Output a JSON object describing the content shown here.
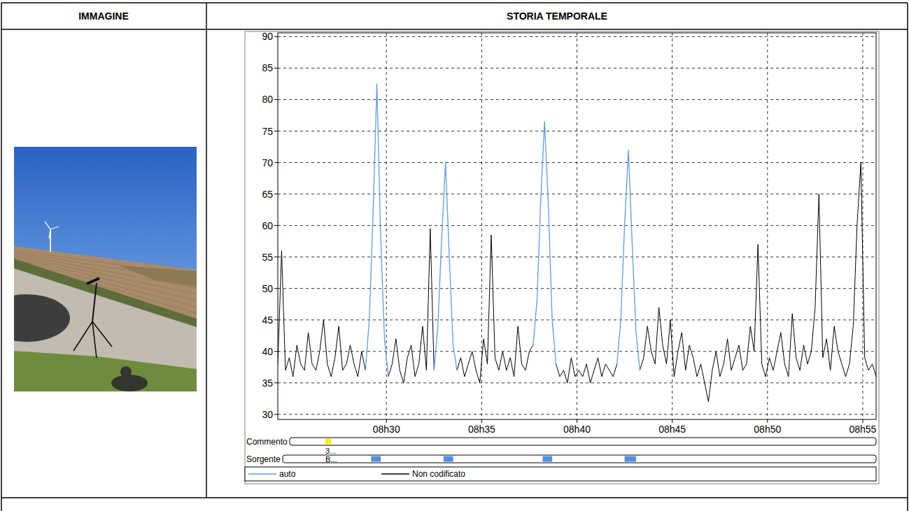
{
  "table": {
    "headers": [
      "IMMAGINE",
      "STORIA TEMPORALE"
    ]
  },
  "chart_data": {
    "type": "line",
    "x": [
      504.3,
      504.5,
      504.7,
      504.9,
      505.1,
      505.3,
      505.5,
      505.7,
      505.9,
      506.1,
      506.3,
      506.5,
      506.7,
      506.9,
      507.1,
      507.3,
      507.5,
      507.7,
      507.9,
      508.1,
      508.3,
      508.5,
      508.7,
      508.9,
      509.1,
      509.3,
      509.5,
      509.7,
      509.9,
      510.1,
      510.3,
      510.5,
      510.7,
      510.9,
      511.1,
      511.3,
      511.5,
      511.7,
      511.9,
      512.1,
      512.3,
      512.5,
      512.7,
      512.9,
      513.1,
      513.3,
      513.5,
      513.7,
      513.9,
      514.1,
      514.3,
      514.5,
      514.7,
      514.9,
      515.1,
      515.3,
      515.5,
      515.7,
      515.9,
      516.1,
      516.3,
      516.5,
      516.7,
      516.9,
      517.1,
      517.3,
      517.5,
      517.7,
      517.9,
      518.1,
      518.3,
      518.5,
      518.7,
      518.9,
      519.1,
      519.3,
      519.5,
      519.7,
      519.9,
      520.1,
      520.3,
      520.5,
      520.7,
      520.9,
      521.1,
      521.3,
      521.5,
      521.7,
      521.9,
      522.1,
      522.3,
      522.5,
      522.7,
      522.9,
      523.1,
      523.3,
      523.5,
      523.7,
      523.9,
      524.1,
      524.3,
      524.5,
      524.7,
      524.9,
      525.1,
      525.3,
      525.5,
      525.7,
      525.9,
      526.1,
      526.3,
      526.5,
      526.7,
      526.9,
      527.1,
      527.3,
      527.5,
      527.7,
      527.9,
      528.1,
      528.3,
      528.5,
      528.7,
      528.9,
      529.1,
      529.3,
      529.5,
      529.7,
      529.9,
      530.1,
      530.3,
      530.5,
      530.7,
      530.9,
      531.1,
      531.3,
      531.5,
      531.7,
      531.9,
      532.1,
      532.3,
      532.5,
      532.7,
      532.9,
      533.1,
      533.3,
      533.5,
      533.7,
      533.9,
      534.1,
      534.3,
      534.5,
      534.7,
      534.9,
      535.1,
      535.3,
      535.5,
      535.7
    ],
    "series": [
      {
        "name": "auto",
        "color": "#5c9ce6",
        "values": [
          null,
          null,
          null,
          null,
          null,
          null,
          null,
          null,
          null,
          null,
          null,
          null,
          null,
          null,
          null,
          null,
          null,
          null,
          null,
          null,
          null,
          null,
          null,
          37,
          45,
          62,
          82.5,
          58,
          42,
          36,
          null,
          null,
          null,
          null,
          null,
          null,
          null,
          null,
          null,
          null,
          null,
          37,
          44,
          58,
          70,
          55,
          41,
          37,
          null,
          null,
          null,
          null,
          null,
          null,
          null,
          null,
          null,
          null,
          null,
          null,
          null,
          null,
          null,
          null,
          null,
          null,
          null,
          41,
          48,
          64,
          76.5,
          63,
          45,
          38,
          null,
          null,
          null,
          null,
          null,
          null,
          null,
          null,
          null,
          null,
          null,
          null,
          null,
          null,
          null,
          38,
          45,
          60,
          72,
          57,
          43,
          37,
          null,
          null,
          null,
          null,
          null,
          null,
          null,
          null,
          null,
          null,
          null,
          null,
          null,
          null,
          null,
          null,
          null,
          null,
          null,
          null,
          null,
          null,
          null,
          null,
          null,
          null,
          null,
          null,
          null,
          null,
          null,
          null,
          null,
          null,
          null,
          null,
          null,
          null,
          null,
          null,
          null,
          null,
          null,
          null,
          null,
          null,
          null,
          null,
          null,
          null,
          null,
          null,
          null,
          null,
          null,
          null,
          null,
          null,
          null,
          null,
          null,
          null
        ]
      },
      {
        "name": "Non codificato",
        "color": "#000000",
        "values": [
          38,
          56,
          37,
          39,
          36,
          41,
          38,
          37,
          43,
          38,
          37,
          40,
          45,
          38,
          36,
          39,
          44,
          37,
          38,
          41,
          38,
          36,
          40,
          37,
          null,
          null,
          null,
          null,
          null,
          36,
          38,
          42,
          37,
          35,
          39,
          41,
          36,
          38,
          44,
          37,
          59.5,
          37,
          null,
          null,
          null,
          null,
          null,
          37,
          39,
          36,
          38,
          40,
          37,
          35,
          42,
          38,
          58.5,
          39,
          37,
          40,
          37,
          39,
          36,
          44,
          38,
          37,
          40,
          41,
          null,
          null,
          null,
          null,
          null,
          38,
          36,
          37,
          35,
          39,
          36,
          37,
          36,
          38,
          35,
          37,
          39,
          36,
          38,
          37,
          36,
          38,
          null,
          null,
          null,
          null,
          null,
          37,
          39,
          44,
          40,
          38,
          47,
          41,
          38,
          45,
          36,
          40,
          43,
          37,
          41,
          39,
          36,
          38,
          35,
          32,
          37,
          40,
          36,
          38,
          42,
          37,
          39,
          41,
          37,
          38,
          44,
          40,
          57,
          38,
          36,
          39,
          37,
          40,
          43,
          38,
          36,
          46,
          39,
          37,
          41,
          38,
          40,
          47,
          65,
          39,
          42,
          37,
          44,
          40,
          38,
          36,
          38,
          44,
          60,
          70,
          39,
          37,
          38,
          36
        ]
      }
    ],
    "xlim": [
      504.3,
      535.7
    ],
    "ylim": [
      29.2,
      90.6
    ],
    "xticks": [
      {
        "value": 510,
        "label": "08h30"
      },
      {
        "value": 515,
        "label": "08h35"
      },
      {
        "value": 520,
        "label": "08h40"
      },
      {
        "value": 525,
        "label": "08h45"
      },
      {
        "value": 530,
        "label": "08h50"
      },
      {
        "value": 535,
        "label": "08h55"
      }
    ],
    "yticks": [
      30,
      35,
      40,
      45,
      50,
      55,
      60,
      65,
      70,
      75,
      80,
      85,
      90
    ],
    "grid": true,
    "legend": "bottom",
    "comment_track": {
      "label": "Commento",
      "text": "3...",
      "color": "#f2f200",
      "spans": [
        [
          506.8,
          507.1
        ]
      ]
    },
    "source_track": {
      "label": "Sorgente",
      "text": "B...",
      "color": "#4f8fe6",
      "spans": [
        [
          509.2,
          509.7
        ],
        [
          513.0,
          513.5
        ],
        [
          518.2,
          518.7
        ],
        [
          522.5,
          523.1
        ]
      ]
    }
  }
}
